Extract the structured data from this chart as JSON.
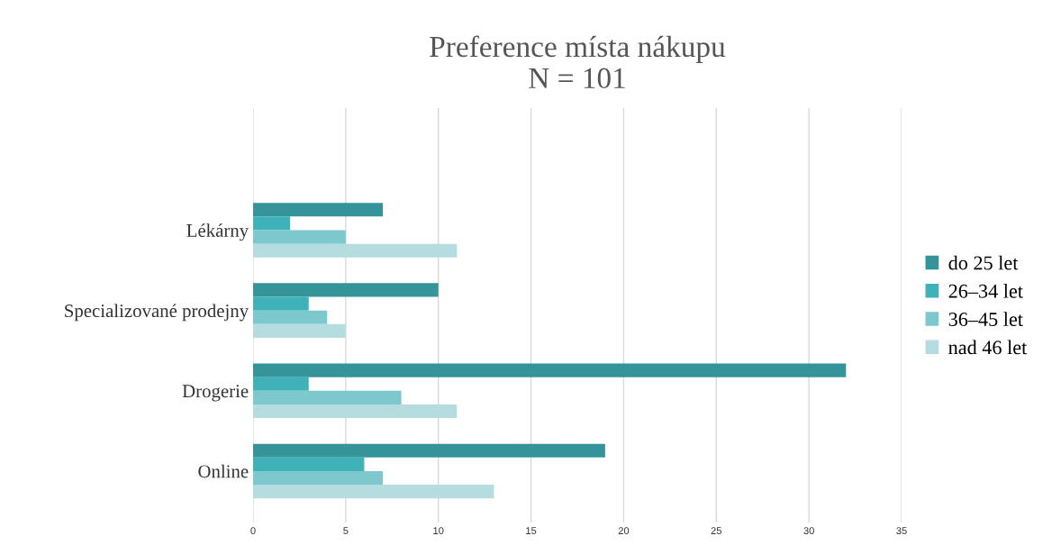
{
  "chart_data": {
    "type": "bar",
    "orientation": "horizontal",
    "title": "Preference místa nákupu\nN = 101",
    "categories": [
      "Lékárny",
      "Specializované prodejny",
      "Drogerie",
      "Online"
    ],
    "series": [
      {
        "name": "do 25 let",
        "color": "#35939a",
        "values": [
          7,
          10,
          32,
          19
        ]
      },
      {
        "name": "26–34 let",
        "color": "#3fb1b8",
        "values": [
          2,
          3,
          3,
          6
        ]
      },
      {
        "name": "36–45 let",
        "color": "#7cc8cc",
        "values": [
          5,
          4,
          8,
          7
        ]
      },
      {
        "name": "nad 46 let",
        "color": "#b5dde0",
        "values": [
          11,
          5,
          11,
          13
        ]
      }
    ],
    "xlim": [
      0,
      35
    ],
    "xticks": [
      0,
      5,
      10,
      15,
      20,
      25,
      30,
      35
    ],
    "grid": "x",
    "legend": "right"
  }
}
